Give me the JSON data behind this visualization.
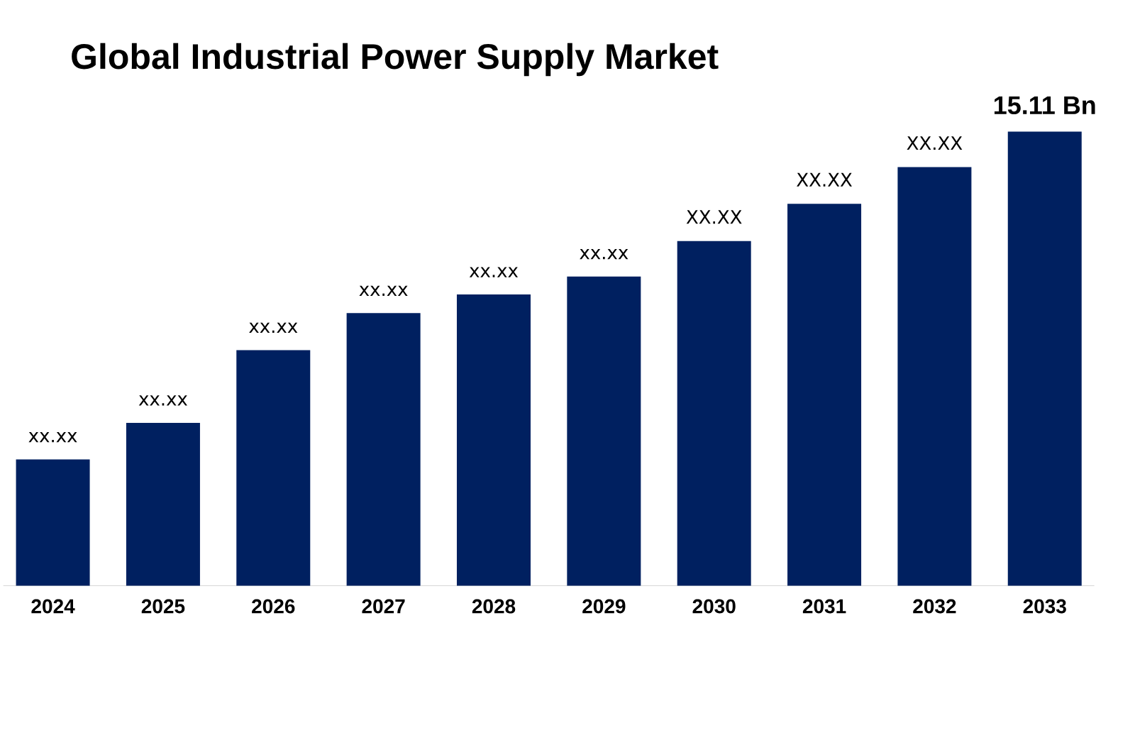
{
  "chart_data": {
    "type": "bar",
    "title": "Global Industrial Power Supply Market",
    "categories": [
      "2024",
      "2025",
      "2026",
      "2027",
      "2028",
      "2029",
      "2030",
      "2031",
      "2032",
      "2033"
    ],
    "values": [
      4.2,
      5.42,
      7.84,
      9.07,
      9.69,
      10.29,
      11.47,
      12.71,
      13.93,
      15.11
    ],
    "value_labels": [
      "xx.xx",
      "xx.xx",
      "xx.xx",
      "xx.xx",
      "xx.xx",
      "xx.xx",
      "XX.XX",
      "XX.XX",
      "XX.XX",
      "15.11 Bn"
    ],
    "color": "#002060"
  }
}
